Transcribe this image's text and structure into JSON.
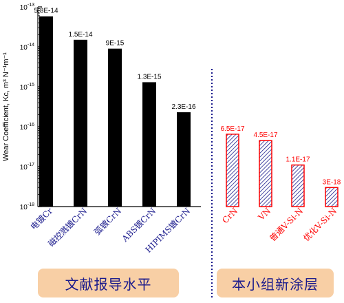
{
  "chart_data": [
    {
      "type": "bar",
      "ylabel": "Wear Coefficient, Kc, m³ N⁻¹m⁻¹",
      "yscale": "log",
      "ylim": [
        1e-18,
        1e-13
      ],
      "yticks": [
        {
          "base": "10",
          "exp": "-13"
        },
        {
          "base": "10",
          "exp": "-14"
        },
        {
          "base": "10",
          "exp": "-15"
        },
        {
          "base": "10",
          "exp": "-16"
        },
        {
          "base": "10",
          "exp": "-17"
        },
        {
          "base": "10",
          "exp": "-18"
        }
      ],
      "categories": [
        "电镀Cr",
        "磁控溅镀CrN",
        "弧镀CrN",
        "ABS镀CrN",
        "HIPIMS镀CrN"
      ],
      "values": [
        5.8e-14,
        1.5e-14,
        9e-15,
        1.3e-15,
        2.3e-16
      ],
      "data_labels": [
        "5.8E-14",
        "1.5E-14",
        "9E-15",
        "1.3E-15",
        "2.3E-16"
      ],
      "bar_color": "#000000",
      "category_label_color": "#1a1a8c",
      "grid": false
    },
    {
      "type": "bar",
      "yscale": "log",
      "ylim": [
        1e-18,
        1e-13
      ],
      "categories": [
        "CrN",
        "VN",
        "普通V-Si-N",
        "优化V-Si-N"
      ],
      "values": [
        6.5e-17,
        4.5e-17,
        1.1e-17,
        3e-18
      ],
      "data_labels": [
        "6.5E-17",
        "4.5E-17",
        "1.1E-17",
        "3E-18"
      ],
      "bar_style": "hatched",
      "bar_edge_color": "#ff0000",
      "bar_hatch_color": "#1a1a8c",
      "category_label_color": "#ff0000",
      "grid": false
    }
  ],
  "captions": {
    "left": "文献报导水平",
    "right": "本小组新涂层"
  },
  "colors": {
    "caption_bg": "#f8cfa5",
    "caption_text": "#1a1a8c",
    "divider": "#1a1a8c"
  }
}
